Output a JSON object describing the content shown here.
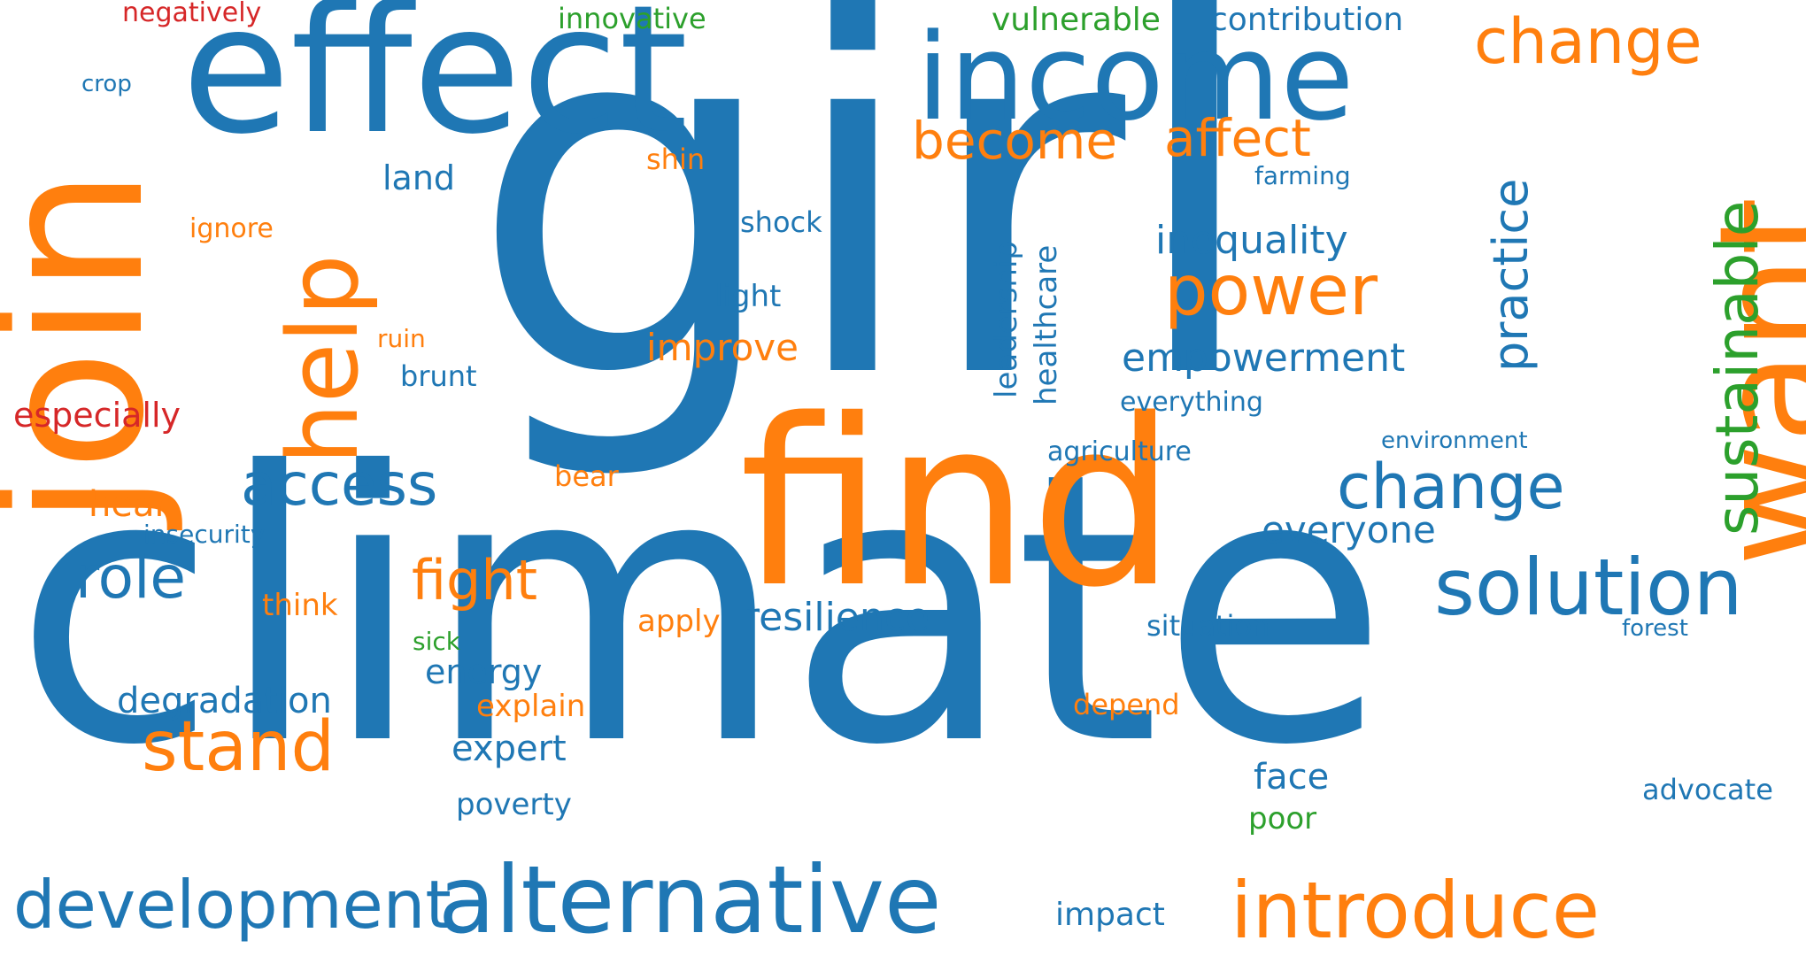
{
  "palette": {
    "blue": "#1f77b4",
    "orange": "#ff7f0e",
    "green": "#2ca02c",
    "red": "#d62728"
  },
  "words": [
    {
      "id": "girl",
      "text": "girl",
      "color": "blue",
      "orientation": "horizontal"
    },
    {
      "id": "climate",
      "text": "climate",
      "color": "blue",
      "orientation": "horizontal"
    },
    {
      "id": "effect",
      "text": "effect",
      "color": "blue",
      "orientation": "horizontal"
    },
    {
      "id": "income",
      "text": "income",
      "color": "blue",
      "orientation": "horizontal"
    },
    {
      "id": "find",
      "text": "find",
      "color": "orange",
      "orientation": "horizontal"
    },
    {
      "id": "want",
      "text": "want",
      "color": "orange",
      "orientation": "vertical"
    },
    {
      "id": "join",
      "text": "join",
      "color": "orange",
      "orientation": "vertical"
    },
    {
      "id": "help",
      "text": "help",
      "color": "orange",
      "orientation": "vertical"
    },
    {
      "id": "alternative",
      "text": "alternative",
      "color": "blue",
      "orientation": "horizontal"
    },
    {
      "id": "development",
      "text": "development",
      "color": "blue",
      "orientation": "horizontal"
    },
    {
      "id": "introduce",
      "text": "introduce",
      "color": "orange",
      "orientation": "horizontal"
    },
    {
      "id": "solution",
      "text": "solution",
      "color": "blue",
      "orientation": "horizontal"
    },
    {
      "id": "stand",
      "text": "stand",
      "color": "orange",
      "orientation": "horizontal"
    },
    {
      "id": "power",
      "text": "power",
      "color": "orange",
      "orientation": "horizontal"
    },
    {
      "id": "change-top",
      "text": "change",
      "color": "orange",
      "orientation": "horizontal"
    },
    {
      "id": "change-mid",
      "text": "change",
      "color": "blue",
      "orientation": "horizontal"
    },
    {
      "id": "sustainable",
      "text": "sustainable",
      "color": "green",
      "orientation": "vertical"
    },
    {
      "id": "access",
      "text": "access",
      "color": "blue",
      "orientation": "horizontal"
    },
    {
      "id": "role",
      "text": "role",
      "color": "blue",
      "orientation": "horizontal"
    },
    {
      "id": "fight",
      "text": "fight",
      "color": "orange",
      "orientation": "horizontal"
    },
    {
      "id": "become",
      "text": "become",
      "color": "orange",
      "orientation": "horizontal"
    },
    {
      "id": "affect",
      "text": "affect",
      "color": "orange",
      "orientation": "horizontal"
    },
    {
      "id": "practice",
      "text": "practice",
      "color": "blue",
      "orientation": "vertical"
    },
    {
      "id": "inequality",
      "text": "inequality",
      "color": "blue",
      "orientation": "horizontal"
    },
    {
      "id": "empowerment",
      "text": "empowerment",
      "color": "blue",
      "orientation": "horizontal"
    },
    {
      "id": "resilience",
      "text": "resilience",
      "color": "blue",
      "orientation": "horizontal"
    },
    {
      "id": "everyone",
      "text": "everyone",
      "color": "blue",
      "orientation": "horizontal"
    },
    {
      "id": "degradation",
      "text": "degradation",
      "color": "blue",
      "orientation": "horizontal"
    },
    {
      "id": "improve",
      "text": "improve",
      "color": "orange",
      "orientation": "horizontal"
    },
    {
      "id": "hear",
      "text": "hear",
      "color": "orange",
      "orientation": "horizontal"
    },
    {
      "id": "expert",
      "text": "expert",
      "color": "blue",
      "orientation": "horizontal"
    },
    {
      "id": "face",
      "text": "face",
      "color": "blue",
      "orientation": "horizontal"
    },
    {
      "id": "energy",
      "text": "energy",
      "color": "blue",
      "orientation": "horizontal"
    },
    {
      "id": "land",
      "text": "land",
      "color": "blue",
      "orientation": "horizontal"
    },
    {
      "id": "impact",
      "text": "impact",
      "color": "blue",
      "orientation": "horizontal"
    },
    {
      "id": "poverty",
      "text": "poverty",
      "color": "blue",
      "orientation": "horizontal"
    },
    {
      "id": "advocate",
      "text": "advocate",
      "color": "blue",
      "orientation": "horizontal"
    },
    {
      "id": "leadership",
      "text": "leadership",
      "color": "blue",
      "orientation": "vertical"
    },
    {
      "id": "healthcare",
      "text": "healthcare",
      "color": "blue",
      "orientation": "vertical"
    },
    {
      "id": "contribution",
      "text": "contribution",
      "color": "blue",
      "orientation": "horizontal"
    },
    {
      "id": "vulnerable",
      "text": "vulnerable",
      "color": "green",
      "orientation": "horizontal"
    },
    {
      "id": "innovative",
      "text": "innovative",
      "color": "green",
      "orientation": "horizontal"
    },
    {
      "id": "especially",
      "text": "especially",
      "color": "red",
      "orientation": "horizontal"
    },
    {
      "id": "negatively",
      "text": "negatively",
      "color": "red",
      "orientation": "horizontal"
    },
    {
      "id": "light",
      "text": "light",
      "color": "blue",
      "orientation": "horizontal"
    },
    {
      "id": "situation",
      "text": "situation",
      "color": "blue",
      "orientation": "horizontal"
    },
    {
      "id": "explain",
      "text": "explain",
      "color": "orange",
      "orientation": "horizontal"
    },
    {
      "id": "depend",
      "text": "depend",
      "color": "orange",
      "orientation": "horizontal"
    },
    {
      "id": "apply",
      "text": "apply",
      "color": "orange",
      "orientation": "horizontal"
    },
    {
      "id": "think",
      "text": "think",
      "color": "orange",
      "orientation": "horizontal"
    },
    {
      "id": "poor",
      "text": "poor",
      "color": "green",
      "orientation": "horizontal"
    },
    {
      "id": "shock",
      "text": "shock",
      "color": "blue",
      "orientation": "horizontal"
    },
    {
      "id": "shin",
      "text": "shin",
      "color": "orange",
      "orientation": "horizontal"
    },
    {
      "id": "brunt",
      "text": "brunt",
      "color": "blue",
      "orientation": "horizontal"
    },
    {
      "id": "bear",
      "text": "bear",
      "color": "orange",
      "orientation": "horizontal"
    },
    {
      "id": "ignore",
      "text": "ignore",
      "color": "orange",
      "orientation": "horizontal"
    },
    {
      "id": "agriculture",
      "text": "agriculture",
      "color": "blue",
      "orientation": "horizontal"
    },
    {
      "id": "everything",
      "text": "everything",
      "color": "blue",
      "orientation": "horizontal"
    },
    {
      "id": "environment",
      "text": "environment",
      "color": "blue",
      "orientation": "horizontal"
    },
    {
      "id": "insecurity",
      "text": "insecurity",
      "color": "blue",
      "orientation": "horizontal"
    },
    {
      "id": "farming",
      "text": "farming",
      "color": "blue",
      "orientation": "horizontal"
    },
    {
      "id": "forest",
      "text": "forest",
      "color": "blue",
      "orientation": "horizontal"
    },
    {
      "id": "crop",
      "text": "crop",
      "color": "blue",
      "orientation": "horizontal"
    },
    {
      "id": "ruin",
      "text": "ruin",
      "color": "orange",
      "orientation": "horizontal"
    },
    {
      "id": "sick",
      "text": "sick",
      "color": "green",
      "orientation": "horizontal"
    }
  ]
}
